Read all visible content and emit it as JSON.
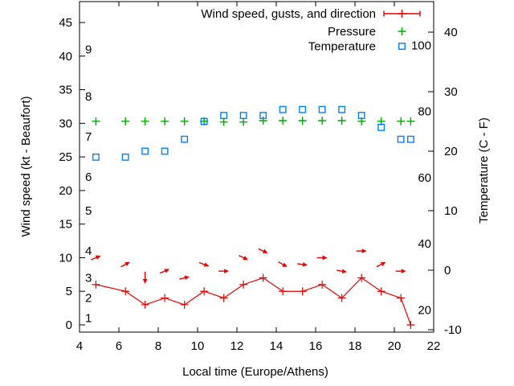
{
  "chart_data": {
    "type": "line",
    "title": "",
    "xlabel": "Local time (Europe/Athens)",
    "ylabel_left": "Wind speed (kt - Beaufort)",
    "ylabel_right": "Temperature (C - F)",
    "x_axis": {
      "min": 4,
      "max": 22,
      "ticks": [
        4,
        6,
        8,
        10,
        12,
        14,
        16,
        18,
        20,
        22
      ]
    },
    "y_axis_left": {
      "label": "Wind speed (kt - Beaufort)",
      "min": 0,
      "max": 45,
      "ticks": [
        0,
        5,
        10,
        15,
        20,
        25,
        30,
        35,
        40,
        45
      ]
    },
    "y_axis_right": {
      "label": "Temperature (C - F)",
      "min": -10,
      "max": 40,
      "ticks": [
        -10,
        0,
        10,
        20,
        30,
        40
      ]
    },
    "beaufort_scale_labels": [
      {
        "label": "1",
        "kt": 1
      },
      {
        "label": "2",
        "kt": 4
      },
      {
        "label": "3",
        "kt": 7
      },
      {
        "label": "4",
        "kt": 11
      },
      {
        "label": "5",
        "kt": 17
      },
      {
        "label": "6",
        "kt": 22
      },
      {
        "label": "7",
        "kt": 28
      },
      {
        "label": "8",
        "kt": 34
      },
      {
        "label": "9",
        "kt": 41
      }
    ],
    "fahrenheit_scale_labels": [
      {
        "label": "20",
        "f": 20
      },
      {
        "label": "40",
        "f": 40
      },
      {
        "label": "60",
        "f": 60
      },
      {
        "label": "80",
        "f": 80
      },
      {
        "label": "100",
        "f": 100
      }
    ],
    "x": [
      4.833,
      6.333,
      7.333,
      8.333,
      9.333,
      10.333,
      11.333,
      12.333,
      13.333,
      14.333,
      15.333,
      16.333,
      17.333,
      18.333,
      19.333,
      20.333,
      20.833
    ],
    "series": [
      {
        "name": "Wind speed, gusts, and direction",
        "style": "line-plus",
        "axis": "left",
        "color": "#e60000",
        "values": [
          6,
          5,
          3,
          4,
          3,
          5,
          4,
          6,
          7,
          5,
          5,
          6,
          4,
          7,
          5,
          4,
          0
        ]
      },
      {
        "name": "Wind gust arrows",
        "style": "arrow",
        "axis": "left",
        "color": "#e60000",
        "x": [
          4.833,
          6.333,
          7.333,
          8.333,
          9.333,
          10.333,
          11.333,
          12.333,
          13.333,
          14.333,
          15.333,
          16.333,
          17.333,
          18.333,
          19.333,
          20.333
        ],
        "values": [
          10,
          9,
          7,
          8,
          7,
          9,
          8,
          10,
          11,
          9,
          9,
          10,
          8,
          11,
          9,
          8
        ],
        "angles_deg": [
          -22,
          -28,
          90,
          -23,
          -14,
          20,
          0,
          25,
          25,
          30,
          8,
          0,
          10,
          0,
          -27,
          0
        ]
      },
      {
        "name": "Pressure",
        "style": "plus",
        "axis": "left",
        "color": "#00aa00",
        "values": [
          30.3,
          30.3,
          30.3,
          30.3,
          30.3,
          30.3,
          30.2,
          30.2,
          30.4,
          30.4,
          30.4,
          30.4,
          30.4,
          30.3,
          30.3,
          30.3,
          30.3
        ]
      },
      {
        "name": "Temperature",
        "style": "open-square",
        "axis": "right",
        "color": "#0080ff",
        "values": [
          19,
          19,
          20,
          20,
          22,
          25,
          26,
          26,
          26,
          27,
          27,
          27,
          27,
          26,
          24,
          22,
          22
        ]
      }
    ],
    "legend": {
      "position": "top-right",
      "entries": [
        {
          "label": "Wind speed, gusts, and direction",
          "sample": "errorline",
          "color": "#e60000"
        },
        {
          "label": "Pressure",
          "sample": "plus",
          "color": "#00aa00"
        },
        {
          "label": "Temperature",
          "sample": "square",
          "color": "#0080ff"
        }
      ]
    },
    "grid": false
  },
  "colors": {
    "background": "#ffffff",
    "axis": "#000000",
    "wind": "#e60000",
    "pressure": "#00aa00",
    "temperature": "#0080ff"
  }
}
